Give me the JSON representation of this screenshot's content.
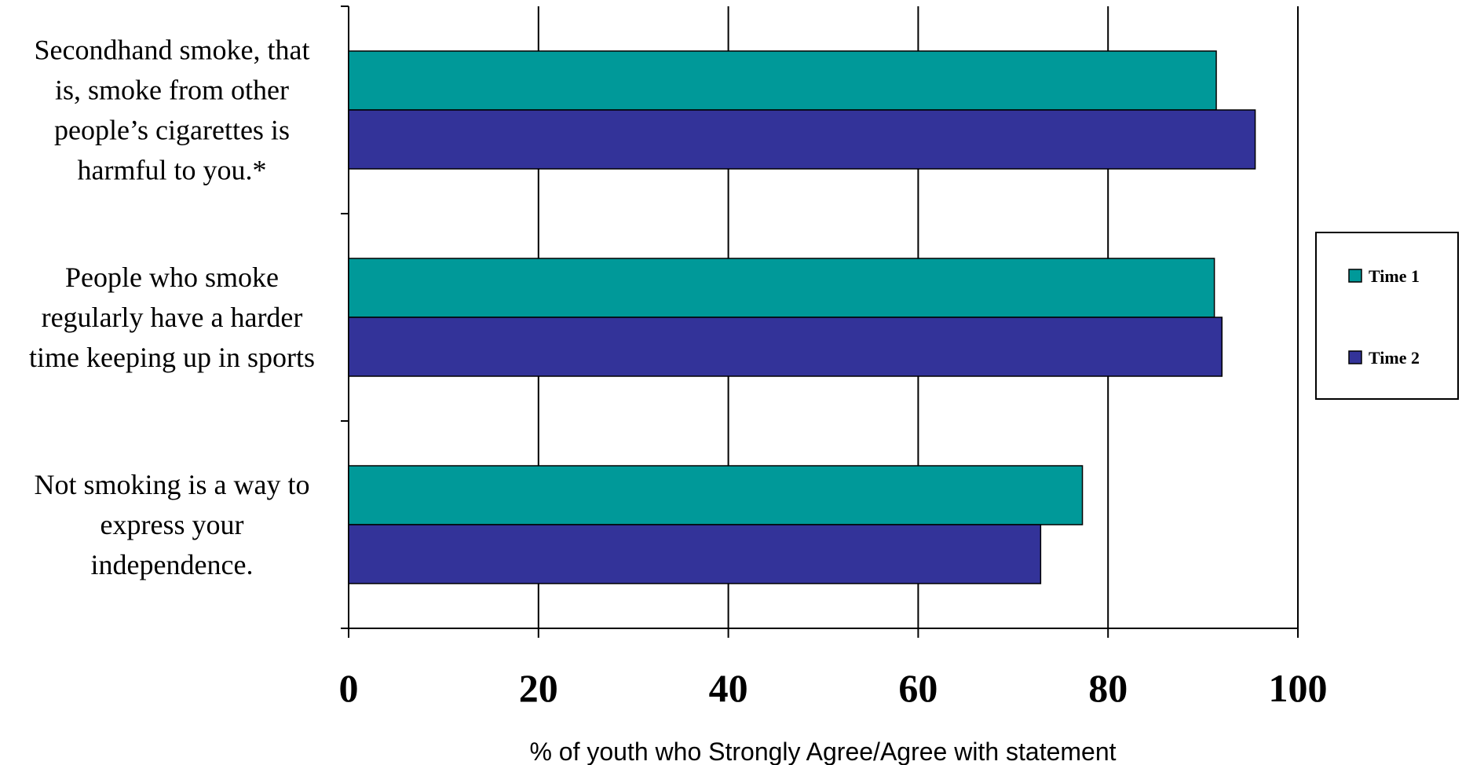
{
  "chart_data": {
    "type": "bar",
    "orientation": "horizontal",
    "categories": [
      "Secondhand smoke, that is, smoke from other people’s cigarettes is harmful to you.*",
      "People who smoke regularly have a harder time keeping up in sports",
      "Not smoking is a way to express your independence."
    ],
    "category_lines": [
      [
        "Secondhand smoke, that",
        "is, smoke from other",
        "people’s cigarettes is",
        "harmful to you.*"
      ],
      [
        "People who smoke",
        "regularly have a harder",
        "time keeping up in sports"
      ],
      [
        "Not smoking is a way to",
        "express your",
        "independence."
      ]
    ],
    "series": [
      {
        "name": "Time 1",
        "color": "#009999",
        "values": [
          91.4,
          91.2,
          77.3
        ]
      },
      {
        "name": "Time 2",
        "color": "#333399",
        "values": [
          95.5,
          92.0,
          72.9
        ]
      }
    ],
    "xlim": [
      0,
      100
    ],
    "xticks": [
      "0",
      "20",
      "40",
      "60",
      "80",
      "100"
    ],
    "xlabel": "% of youth who Strongly Agree/Agree with statement",
    "title": "",
    "grid": "vertical",
    "legend_position": "right"
  }
}
